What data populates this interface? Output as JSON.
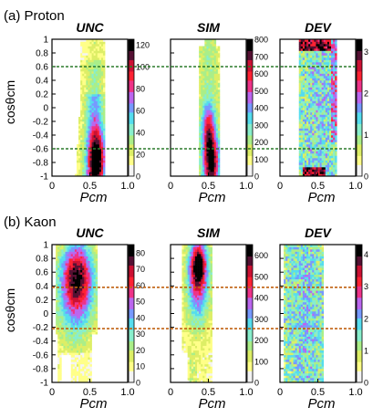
{
  "figure": {
    "colorscale": [
      "#f4f4f4",
      "#ffff88",
      "#ddee66",
      "#aaee88",
      "#88eecc",
      "#55ddee",
      "#7799ff",
      "#bb66ee",
      "#ee3388",
      "#ff2233",
      "#cc1133",
      "#551133",
      "#000000"
    ],
    "guide_color_proton": "#2a7a2a",
    "guide_color_kaon": "#c06010"
  },
  "chart_data": [
    {
      "type": "heatmap",
      "panel_label": "(a) Proton",
      "ylabel": "cosθcm",
      "xlabel": "Pcm",
      "panel_titles": [
        "UNC",
        "SIM",
        "DEV"
      ],
      "xlim": [
        0,
        1.0
      ],
      "ylim": [
        -1,
        1
      ],
      "x_ticks": [
        "0",
        "0.5",
        "1.0"
      ],
      "y_ticks": [
        "1",
        "0.8",
        "0.6",
        "0.4",
        "0.2",
        "0",
        "-0.2",
        "-0.4",
        "-0.6",
        "-0.8",
        "-1"
      ],
      "guide_lines_cos": [
        0.6,
        -0.6
      ],
      "colorbars": [
        {
          "panel": "UNC",
          "ticks": [
            "0",
            "20",
            "40",
            "60",
            "80",
            "100",
            "120"
          ],
          "max": 125
        },
        {
          "panel": "SIM",
          "ticks": [
            "0",
            "100",
            "200",
            "300",
            "400",
            "500",
            "600",
            "700",
            "800"
          ],
          "max": 800
        },
        {
          "panel": "DEV",
          "ticks": [
            "0",
            "1",
            "2",
            "3"
          ],
          "max": 3.3
        }
      ]
    },
    {
      "type": "heatmap",
      "panel_label": "(b) Kaon",
      "ylabel": "cosθcm",
      "xlabel": "Pcm",
      "panel_titles": [
        "UNC",
        "SIM",
        "DEV"
      ],
      "xlim": [
        0,
        1.0
      ],
      "ylim": [
        -1,
        1
      ],
      "x_ticks": [
        "0",
        "0.5",
        "1.0"
      ],
      "y_ticks": [
        "1",
        "0.8",
        "0.6",
        "0.4",
        "0.2",
        "0",
        "-0.2",
        "-0.4",
        "-0.6",
        "-0.8",
        "-1"
      ],
      "guide_lines_cos": [
        0.38,
        -0.22
      ],
      "colorbars": [
        {
          "panel": "UNC",
          "ticks": [
            "0",
            "10",
            "20",
            "30",
            "40",
            "50",
            "60",
            "70",
            "80"
          ],
          "max": 85
        },
        {
          "panel": "SIM",
          "ticks": [
            "0",
            "100",
            "200",
            "300",
            "400",
            "500",
            "600"
          ],
          "max": 650
        },
        {
          "panel": "DEV",
          "ticks": [
            "0",
            "1",
            "2",
            "3",
            "4"
          ],
          "max": 4.3
        }
      ]
    }
  ]
}
